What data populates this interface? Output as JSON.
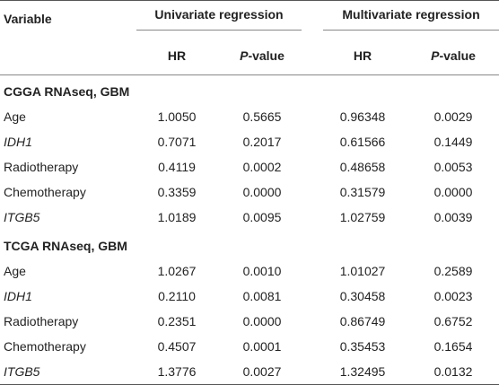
{
  "header": {
    "variable": "Variable",
    "univariate": "Univariate regression",
    "multivariate": "Multivariate regression",
    "hr": "HR",
    "p_italic": "P",
    "p_rest": "-value"
  },
  "sections": [
    {
      "title": "CGGA RNAseq, GBM",
      "rows": [
        {
          "variable": "Age",
          "italic": false,
          "uni_hr": "1.0050",
          "uni_p": "0.5665",
          "multi_hr": "0.96348",
          "multi_p": "0.0029"
        },
        {
          "variable": "IDH1",
          "italic": true,
          "uni_hr": "0.7071",
          "uni_p": "0.2017",
          "multi_hr": "0.61566",
          "multi_p": "0.1449"
        },
        {
          "variable": "Radiotherapy",
          "italic": false,
          "uni_hr": "0.4119",
          "uni_p": "0.0002",
          "multi_hr": "0.48658",
          "multi_p": "0.0053"
        },
        {
          "variable": "Chemotherapy",
          "italic": false,
          "uni_hr": "0.3359",
          "uni_p": "0.0000",
          "multi_hr": "0.31579",
          "multi_p": "0.0000"
        },
        {
          "variable": "ITGB5",
          "italic": true,
          "uni_hr": "1.0189",
          "uni_p": "0.0095",
          "multi_hr": "1.02759",
          "multi_p": "0.0039"
        }
      ]
    },
    {
      "title": "TCGA RNAseq, GBM",
      "rows": [
        {
          "variable": "Age",
          "italic": false,
          "uni_hr": "1.0267",
          "uni_p": "0.0010",
          "multi_hr": "1.01027",
          "multi_p": "0.2589"
        },
        {
          "variable": "IDH1",
          "italic": true,
          "uni_hr": "0.2110",
          "uni_p": "0.0081",
          "multi_hr": "0.30458",
          "multi_p": "0.0023"
        },
        {
          "variable": "Radiotherapy",
          "italic": false,
          "uni_hr": "0.2351",
          "uni_p": "0.0000",
          "multi_hr": "0.86749",
          "multi_p": "0.6752"
        },
        {
          "variable": "Chemotherapy",
          "italic": false,
          "uni_hr": "0.4507",
          "uni_p": "0.0001",
          "multi_hr": "0.35453",
          "multi_p": "0.1654"
        },
        {
          "variable": "ITGB5",
          "italic": true,
          "uni_hr": "1.3776",
          "uni_p": "0.0027",
          "multi_hr": "1.32495",
          "multi_p": "0.0132"
        }
      ]
    }
  ]
}
